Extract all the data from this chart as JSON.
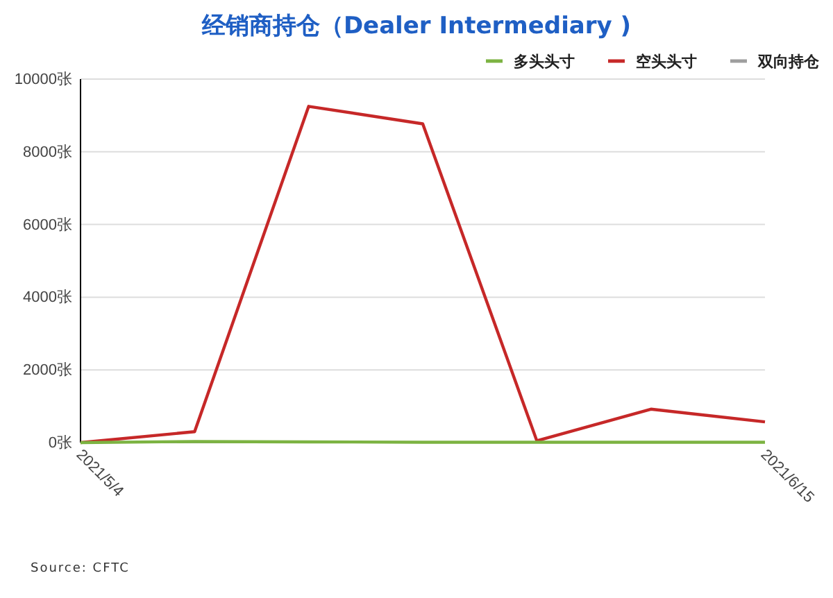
{
  "chart_data": {
    "type": "line",
    "title": "经销商持仓（Dealer Intermediary )",
    "categories": [
      "2021/5/4",
      null,
      null,
      null,
      null,
      null,
      "2021/6/15"
    ],
    "series": [
      {
        "name": "多头头寸",
        "color": "#7cb342",
        "values": [
          0,
          30,
          20,
          10,
          10,
          10,
          10
        ]
      },
      {
        "name": "空头头寸",
        "color": "#c62828",
        "values": [
          0,
          300,
          9250,
          8770,
          50,
          920,
          570
        ]
      },
      {
        "name": "双向持仓",
        "color": "#9e9e9e",
        "values": [
          null,
          null,
          null,
          null,
          null,
          null,
          null
        ]
      }
    ],
    "ylim": [
      0,
      10000
    ],
    "yticks": [
      {
        "value": 0,
        "label": "0张"
      },
      {
        "value": 2000,
        "label": "2000张"
      },
      {
        "value": 4000,
        "label": "4000张"
      },
      {
        "value": 6000,
        "label": "6000张"
      },
      {
        "value": 8000,
        "label": "8000张"
      },
      {
        "value": 10000,
        "label": "10000张"
      }
    ],
    "grid": "y",
    "legend": "top right",
    "marker": "none",
    "line_style": "solid",
    "annotations": [
      "Source: CFTC"
    ]
  }
}
